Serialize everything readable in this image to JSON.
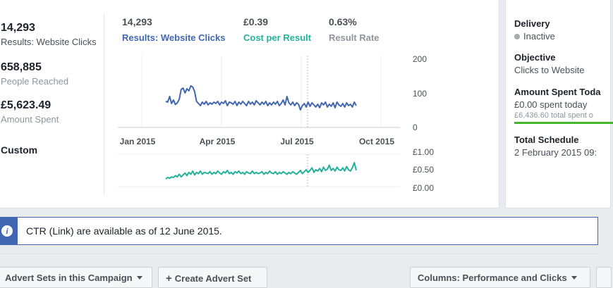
{
  "summary": {
    "results_value": "14,293",
    "results_label": "Results: Website Clicks",
    "reach_value": "658,885",
    "reach_label": "People Reached",
    "spent_value": "£5,623.49",
    "spent_label": "Amount Spent",
    "date_range": "Custom"
  },
  "metrics": [
    {
      "value": "14,293",
      "label": "Results: Website Clicks",
      "color": "#4267b2"
    },
    {
      "value": "£0.39",
      "label": "Cost per Result",
      "color": "#23b19c"
    },
    {
      "value": "0.63%",
      "label": "Result Rate",
      "color": "#90949c"
    }
  ],
  "chart_data": [
    {
      "type": "line",
      "x_ticks": [
        "Jan 2015",
        "Apr 2015",
        "Jul 2015",
        "Oct 2015"
      ],
      "y_ticks": [
        "200",
        "100",
        "0"
      ],
      "ylim": [
        0,
        200
      ],
      "series": [
        {
          "name": "Results: Website Clicks",
          "color": "#4267b2",
          "values": [
            74,
            72,
            88,
            68,
            78,
            65,
            70,
            80,
            108,
            112,
            98,
            110,
            104,
            118,
            115,
            102,
            74,
            68,
            62,
            72,
            66,
            74,
            64,
            70,
            66,
            72,
            68,
            74,
            64,
            72,
            68,
            76,
            62,
            72,
            70,
            66,
            74,
            62,
            72,
            66,
            74,
            68,
            62,
            74,
            66,
            72,
            64,
            76,
            70,
            64,
            72,
            66,
            74,
            62,
            70,
            64,
            72,
            66,
            74,
            62,
            68,
            78,
            64,
            88,
            70,
            64,
            72,
            62,
            70,
            66,
            50,
            62,
            68,
            58,
            72,
            60,
            70,
            64,
            58,
            66,
            56,
            70,
            64,
            72,
            58,
            66,
            60,
            70,
            56,
            72,
            64,
            60,
            68,
            58,
            70,
            62,
            66,
            58,
            72,
            62
          ]
        }
      ]
    },
    {
      "type": "line",
      "y_ticks": [
        "£1.00",
        "£0.50",
        "£0.00"
      ],
      "ylim": [
        0,
        1
      ],
      "series": [
        {
          "name": "Cost per Result",
          "color": "#23b19c",
          "values": [
            0.24,
            0.28,
            0.26,
            0.3,
            0.28,
            0.34,
            0.3,
            0.38,
            0.3,
            0.36,
            0.42,
            0.34,
            0.44,
            0.38,
            0.48,
            0.36,
            0.44,
            0.4,
            0.48,
            0.38,
            0.44,
            0.42,
            0.4,
            0.46,
            0.38,
            0.44,
            0.4,
            0.48,
            0.42,
            0.38,
            0.46,
            0.42,
            0.5,
            0.4,
            0.44,
            0.38,
            0.46,
            0.42,
            0.48,
            0.4,
            0.44,
            0.38,
            0.46,
            0.42,
            0.4,
            0.48,
            0.4,
            0.44,
            0.4,
            0.42,
            0.46,
            0.38,
            0.44,
            0.4,
            0.48,
            0.42,
            0.4,
            0.46,
            0.38,
            0.44,
            0.4,
            0.46,
            0.42,
            0.38,
            0.44,
            0.4,
            0.46,
            0.42,
            0.38,
            0.44,
            0.5,
            0.4,
            0.46,
            0.52,
            0.44,
            0.5,
            0.58,
            0.44,
            0.52,
            0.48,
            0.56,
            0.46,
            0.6,
            0.5,
            0.54,
            0.66,
            0.5,
            0.56,
            0.48,
            0.6,
            0.52,
            0.5,
            0.58,
            0.48,
            0.62,
            0.52,
            0.48,
            0.58,
            0.74,
            0.5
          ]
        }
      ]
    }
  ],
  "side": {
    "delivery_head": "Delivery",
    "delivery_value": "Inactive",
    "objective_head": "Objective",
    "objective_value": "Clicks to Website",
    "spent_head": "Amount Spent Toda",
    "spent_today": "£0.00 spent today",
    "spent_total": "£6,436.60 total spent o",
    "schedule_head": "Total Schedule",
    "schedule_value": "2 February 2015 09:"
  },
  "notice": {
    "text": "CTR (Link) are available as of 12 June 2015."
  },
  "toolbar": {
    "advert_sets": "Advert Sets in this Campaign",
    "create": "Create Advert Set",
    "columns": "Columns: Performance and Clicks"
  }
}
